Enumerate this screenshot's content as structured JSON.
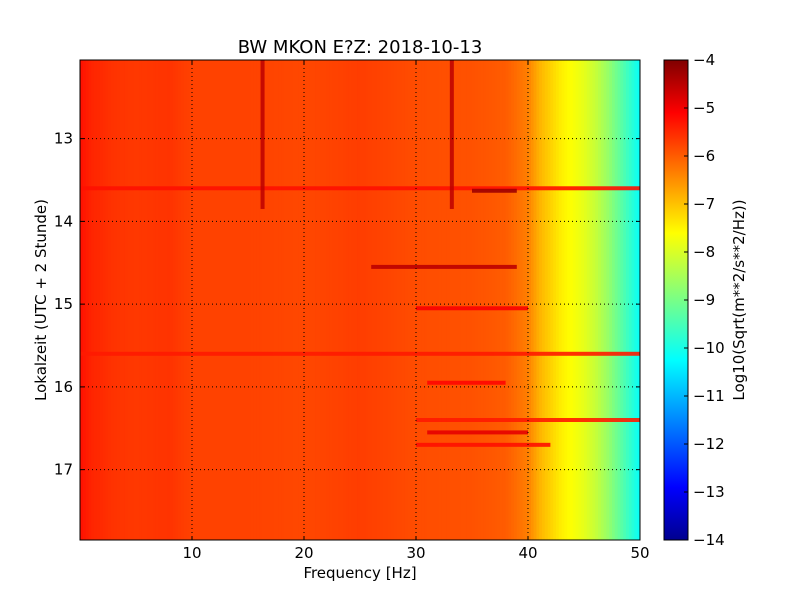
{
  "chart_data": {
    "type": "heatmap",
    "title": "BW MKON E?Z: 2018-10-13",
    "xlabel": "Frequency [Hz]",
    "ylabel": "Lokalzeit (UTC + 2 Stunde)",
    "xlim": [
      0,
      50
    ],
    "ylim": [
      12.05,
      17.85
    ],
    "y_inverted": true,
    "x_ticks": [
      10,
      20,
      30,
      40,
      50
    ],
    "x_tick_labels": [
      "10",
      "20",
      "30",
      "40",
      "50"
    ],
    "y_ticks": [
      13,
      14,
      15,
      16,
      17
    ],
    "y_tick_labels": [
      "13",
      "14",
      "15",
      "16",
      "17"
    ],
    "grid": true,
    "colormap": "jet",
    "colorbar": {
      "label": "Log10(Sqrt(m**2/s**2/Hz))",
      "range": [
        -14,
        -4
      ],
      "ticks": [
        -4,
        -5,
        -6,
        -7,
        -8,
        -9,
        -10,
        -11,
        -12,
        -13,
        -14
      ],
      "tick_labels": [
        "−4",
        "−5",
        "−6",
        "−7",
        "−8",
        "−9",
        "−10",
        "−11",
        "−12",
        "−13",
        "−14"
      ]
    },
    "frequency_profile": {
      "x": [
        0,
        1,
        3,
        5,
        8,
        10,
        15,
        20,
        25,
        30,
        35,
        38,
        40,
        41,
        42,
        43,
        44,
        45,
        46,
        47,
        48,
        49,
        50
      ],
      "values": [
        -5.4,
        -5.6,
        -5.75,
        -5.8,
        -5.75,
        -5.9,
        -5.9,
        -5.95,
        -5.85,
        -6.0,
        -6.05,
        -6.15,
        -6.5,
        -7.0,
        -7.3,
        -7.6,
        -7.8,
        -8.0,
        -8.3,
        -8.7,
        -9.2,
        -9.7,
        -10.2
      ]
    },
    "bands": [
      {
        "time": 13.6,
        "f_start": 0,
        "f_end": 50,
        "value": -5.4
      },
      {
        "time": 13.63,
        "f_start": 35,
        "f_end": 39,
        "value": -4.3
      },
      {
        "time": 14.55,
        "f_start": 26,
        "f_end": 39,
        "value": -4.6
      },
      {
        "time": 15.05,
        "f_start": 30,
        "f_end": 40,
        "value": -5.2
      },
      {
        "time": 15.6,
        "f_start": 0,
        "f_end": 50,
        "value": -5.5
      },
      {
        "time": 15.95,
        "f_start": 31,
        "f_end": 38,
        "value": -5.3
      },
      {
        "time": 16.4,
        "f_start": 30,
        "f_end": 50,
        "value": -5.5
      },
      {
        "time": 16.55,
        "f_start": 31,
        "f_end": 40,
        "value": -5.0
      },
      {
        "time": 16.7,
        "f_start": 30,
        "f_end": 42,
        "value": -5.4
      }
    ],
    "spectral_lines": [
      {
        "frequency": 16.3,
        "t_start": 12.05,
        "t_end": 13.85,
        "value": -4.6
      },
      {
        "frequency": 33.2,
        "t_start": 12.05,
        "t_end": 13.85,
        "value": -4.6
      }
    ]
  }
}
